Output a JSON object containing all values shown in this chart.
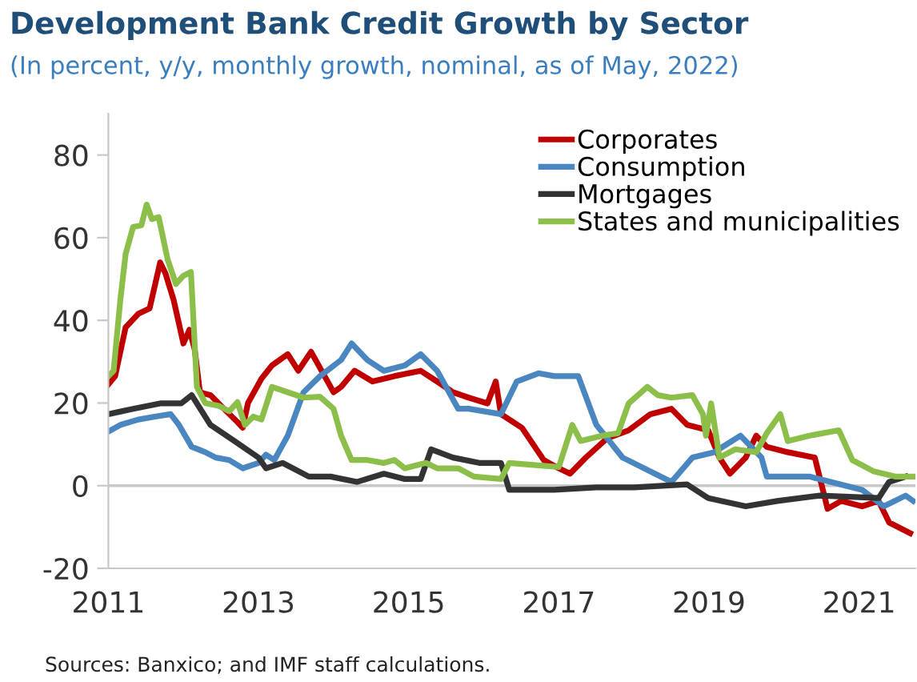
{
  "chart_data": {
    "type": "line",
    "title": "Development Bank Credit Growth by Sector",
    "subtitle": "(In percent, y/y, monthly growth, nominal, as of May, 2022)",
    "xlim": [
      2011,
      2021.75
    ],
    "xticks": [
      2011,
      2013,
      2015,
      2017,
      2019,
      2021
    ],
    "ylim": [
      -20,
      90
    ],
    "yticks": [
      -20,
      0,
      20,
      40,
      60,
      80
    ],
    "grid": false,
    "legend": "top right",
    "line_style": "solid",
    "marker": "none",
    "ref_lines": [
      {
        "axis": "y",
        "value": 0,
        "color": "#c8c8c8"
      }
    ],
    "annotations": [
      "Sources: Banxico; and IMF staff calculations."
    ],
    "series": [
      {
        "name": "Corporates",
        "color": "#c00000",
        "x": [
          2011.0,
          2011.09,
          2011.23,
          2011.4,
          2011.55,
          2011.69,
          2011.76,
          2011.87,
          2012.0,
          2012.08,
          2012.15,
          2012.22,
          2012.36,
          2012.54,
          2012.72,
          2012.79,
          2012.86,
          2013.04,
          2013.18,
          2013.39,
          2013.53,
          2013.7,
          2014.0,
          2014.1,
          2014.28,
          2014.52,
          2014.81,
          2015.16,
          2015.38,
          2015.59,
          2015.8,
          2016.05,
          2016.16,
          2016.23,
          2016.51,
          2016.8,
          2017.0,
          2017.15,
          2017.36,
          2017.64,
          2017.93,
          2018.22,
          2018.5,
          2018.71,
          2018.99,
          2019.14,
          2019.28,
          2019.49,
          2019.63,
          2019.77,
          2020.05,
          2020.41,
          2020.58,
          2020.76,
          2021.04,
          2021.26,
          2021.4,
          2021.68
        ],
        "values": [
          24.5,
          26.5,
          38.3,
          41.6,
          42.9,
          54,
          51.4,
          44.9,
          34.4,
          37.7,
          33,
          22.6,
          21.9,
          18.6,
          15.4,
          14,
          20,
          25.9,
          29.1,
          31.8,
          27.8,
          32.4,
          22.6,
          23.9,
          27.8,
          25.2,
          26.5,
          27.8,
          25.2,
          22.6,
          21.3,
          19.9,
          25.2,
          17.3,
          14,
          6.2,
          4.2,
          2.9,
          6.8,
          11.4,
          13.4,
          17.3,
          18.6,
          14.7,
          13.4,
          6.8,
          2.9,
          6.8,
          12.1,
          9.4,
          8.1,
          6.8,
          -5.6,
          -3.7,
          -5,
          -3.7,
          -8.9,
          -11.5
        ]
      },
      {
        "name": "Consumption",
        "color": "#4a86c0",
        "x": [
          2011.0,
          2011.16,
          2011.4,
          2011.62,
          2011.83,
          2011.94,
          2012.11,
          2012.29,
          2012.43,
          2012.61,
          2012.79,
          2013.0,
          2013.1,
          2013.21,
          2013.39,
          2013.6,
          2013.82,
          2014.1,
          2014.24,
          2014.45,
          2014.67,
          2014.95,
          2015.16,
          2015.38,
          2015.66,
          2015.8,
          2016.23,
          2016.44,
          2016.73,
          2016.94,
          2017.26,
          2017.5,
          2017.85,
          2018.28,
          2018.5,
          2018.78,
          2019.07,
          2019.42,
          2019.7,
          2019.77,
          2020.34,
          2020.62,
          2021.04,
          2021.33,
          2021.62,
          2021.72
        ],
        "values": [
          13.1,
          14.7,
          16,
          16.7,
          17.3,
          14.7,
          9.4,
          8.1,
          6.8,
          6.2,
          4.2,
          5.5,
          7.5,
          6.2,
          12.1,
          22.6,
          26.5,
          30.4,
          34.4,
          30.4,
          27.8,
          29.1,
          31.8,
          27.8,
          18.6,
          18.6,
          17.3,
          25.2,
          27.2,
          26.5,
          26.5,
          14.7,
          6.8,
          2.9,
          0.9,
          6.8,
          8.1,
          12.1,
          6.8,
          2.2,
          2.2,
          0.9,
          -1,
          -5,
          -2.4,
          -3.7
        ]
      },
      {
        "name": "Mortgages",
        "color": "#333333",
        "x": [
          2011.0,
          2011.33,
          2011.69,
          2011.97,
          2012.11,
          2012.36,
          2012.68,
          2013.0,
          2013.1,
          2013.32,
          2013.67,
          2013.96,
          2014.31,
          2014.67,
          2014.95,
          2015.16,
          2015.3,
          2015.59,
          2015.94,
          2016.23,
          2016.34,
          2016.94,
          2017.5,
          2018.0,
          2018.71,
          2018.99,
          2019.49,
          2019.91,
          2020.48,
          2021.26,
          2021.4,
          2021.62
        ],
        "values": [
          17.3,
          18.6,
          19.9,
          19.9,
          21.9,
          14.7,
          10.8,
          6.8,
          4.2,
          5.5,
          2.2,
          2.2,
          0.9,
          2.9,
          1.6,
          1.6,
          8.8,
          6.8,
          5.5,
          5.5,
          -1,
          -1,
          -0.4,
          -0.4,
          0.3,
          -3,
          -5,
          -3.7,
          -2.4,
          -3,
          0.9,
          2.2
        ]
      },
      {
        "name": "States and municipalities",
        "color": "#8cbf4a",
        "x": [
          2011.0,
          2011.07,
          2011.16,
          2011.23,
          2011.33,
          2011.44,
          2011.51,
          2011.58,
          2011.67,
          2011.79,
          2011.9,
          2012.0,
          2012.1,
          2012.18,
          2012.29,
          2012.47,
          2012.61,
          2012.72,
          2012.82,
          2012.93,
          2013.04,
          2013.18,
          2013.39,
          2013.6,
          2013.82,
          2014.0,
          2014.1,
          2014.24,
          2014.45,
          2014.67,
          2014.81,
          2014.95,
          2015.23,
          2015.38,
          2015.66,
          2015.87,
          2016.23,
          2016.34,
          2016.73,
          2017.0,
          2017.18,
          2017.29,
          2017.58,
          2017.79,
          2017.93,
          2018.18,
          2018.32,
          2018.5,
          2018.78,
          2018.92,
          2018.96,
          2019.03,
          2019.14,
          2019.35,
          2019.63,
          2019.77,
          2019.95,
          2020.05,
          2020.34,
          2020.73,
          2020.91,
          2021.19,
          2021.48,
          2021.72
        ],
        "values": [
          26.5,
          27.8,
          45,
          56,
          62.6,
          63,
          68,
          64.5,
          65,
          54.7,
          48.8,
          50.8,
          51.7,
          23.9,
          20,
          19.3,
          18,
          20.2,
          14.7,
          16.7,
          16,
          23.9,
          22.6,
          21.3,
          21.5,
          18.6,
          12.1,
          6.2,
          6.2,
          5.5,
          6.2,
          4.2,
          5.5,
          4.2,
          4.2,
          2.2,
          1.6,
          5.5,
          4.9,
          4.5,
          14.7,
          10.8,
          12.1,
          12.7,
          19.9,
          23.9,
          21.9,
          21.3,
          21.9,
          17.3,
          12.1,
          19.9,
          6.8,
          8.8,
          8.1,
          12.7,
          17.3,
          10.8,
          12.1,
          13.4,
          6.2,
          3.5,
          2.2,
          2.2
        ]
      }
    ]
  }
}
